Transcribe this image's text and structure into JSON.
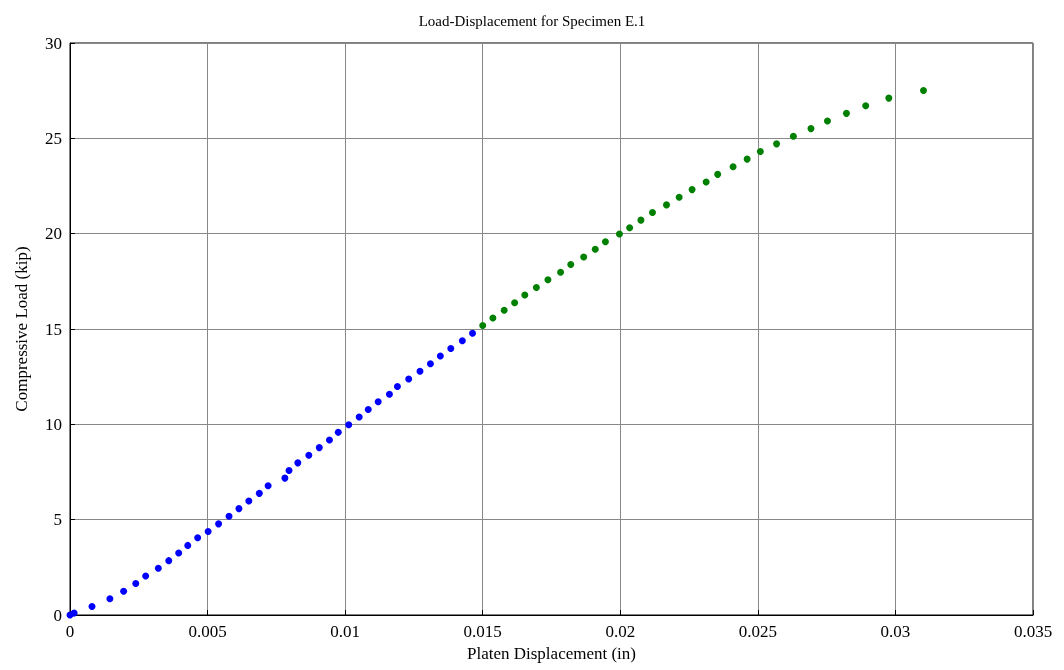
{
  "chart_data": {
    "type": "scatter",
    "title": "Load-Displacement for Specimen E.1",
    "xlabel": "Platen Displacement (in)",
    "ylabel": "Compressive Load (kip)",
    "xlim": [
      0,
      0.035
    ],
    "xticks": [
      0,
      0.005,
      0.01,
      0.015,
      0.02,
      0.025,
      0.03,
      0.035
    ],
    "ylim": [
      0,
      30
    ],
    "yticks": [
      0,
      5,
      10,
      15,
      20,
      25,
      30
    ],
    "grid": true,
    "marker": "circle",
    "series": [
      {
        "color": "#0000ff",
        "x": [
          0,
          0.00015,
          0.0008,
          0.00145,
          0.00195,
          0.00239,
          0.00275,
          0.00321,
          0.00359,
          0.00395,
          0.00428,
          0.00464,
          0.00502,
          0.0054,
          0.00578,
          0.00614,
          0.0065,
          0.00688,
          0.0072,
          0.00781,
          0.00796,
          0.00828,
          0.00868,
          0.00906,
          0.00943,
          0.00975,
          0.01013,
          0.01051,
          0.01084,
          0.0112,
          0.01161,
          0.0119,
          0.01231,
          0.01272,
          0.0131,
          0.01346,
          0.01384,
          0.01426,
          0.01463
        ],
        "values": [
          0,
          0.1,
          0.45,
          0.85,
          1.25,
          1.65,
          2.05,
          2.45,
          2.85,
          3.25,
          3.65,
          4.05,
          4.38,
          4.78,
          5.18,
          5.58,
          5.98,
          6.38,
          6.78,
          7.18,
          7.58,
          7.98,
          8.38,
          8.78,
          9.18,
          9.58,
          9.98,
          10.38,
          10.78,
          11.18,
          11.58,
          11.98,
          12.38,
          12.78,
          13.18,
          13.58,
          13.98,
          14.38,
          14.78
        ]
      },
      {
        "color": "#008000",
        "x": [
          0.015,
          0.01537,
          0.01578,
          0.01616,
          0.01653,
          0.01695,
          0.01737,
          0.01783,
          0.0182,
          0.01867,
          0.01909,
          0.01946,
          0.01997,
          0.02034,
          0.02075,
          0.02117,
          0.02168,
          0.02214,
          0.02261,
          0.02312,
          0.02354,
          0.0241,
          0.02461,
          0.02509,
          0.02568,
          0.02629,
          0.02693,
          0.02753,
          0.02822,
          0.02892,
          0.02976,
          0.03102
        ],
        "values": [
          15.18,
          15.58,
          15.98,
          16.38,
          16.78,
          17.18,
          17.58,
          17.98,
          18.38,
          18.78,
          19.18,
          19.58,
          19.98,
          20.31,
          20.71,
          21.11,
          21.51,
          21.91,
          22.31,
          22.71,
          23.11,
          23.51,
          23.91,
          24.31,
          24.71,
          25.11,
          25.51,
          25.91,
          26.31,
          26.71,
          27.11,
          27.51
        ]
      }
    ]
  }
}
